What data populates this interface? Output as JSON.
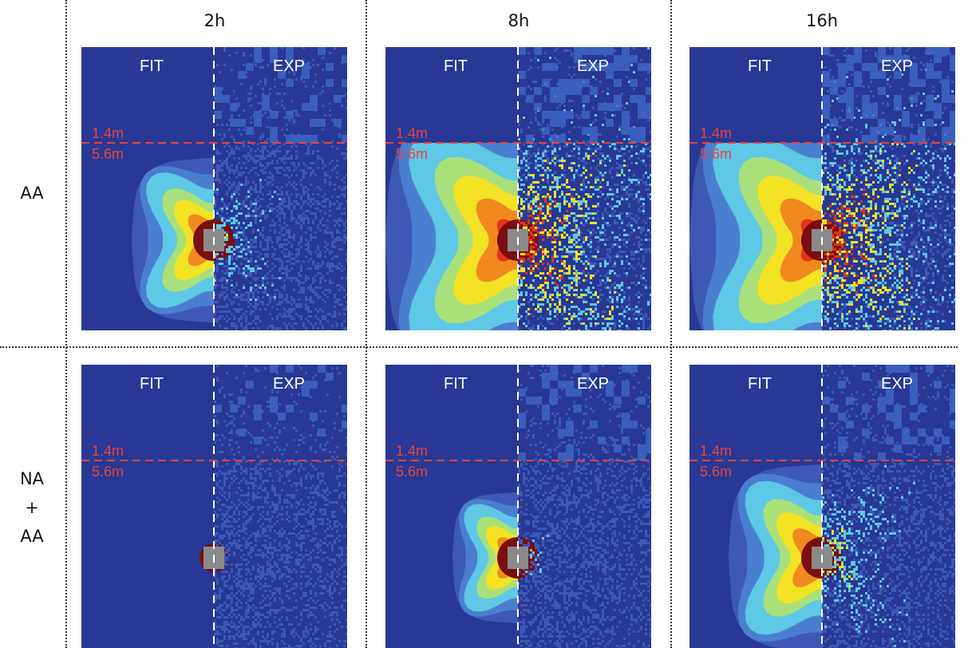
{
  "columns": [
    "2h",
    "8h",
    "16h"
  ],
  "rows": [
    {
      "label_lines": [
        "AA"
      ]
    },
    {
      "label_lines": [
        "NA",
        "+",
        "AA"
      ]
    }
  ],
  "panel_labels": {
    "left": "FIT",
    "right": "EXP",
    "upper_distance": "1.4m",
    "lower_distance": "5.6m"
  },
  "panel_intensity": [
    [
      0.45,
      0.9,
      0.9
    ],
    [
      0.05,
      0.3,
      0.55
    ]
  ],
  "colors": {
    "background": "#283894",
    "low": "#3d59b5",
    "mid": "#5ec8e6",
    "high": "#f3e324",
    "peak": "#e4321b",
    "core": "#7a0d0d",
    "beamstop": "#8a8a8a",
    "divider_line": "#e8453a",
    "text_white": "#ffffff",
    "text_red": "#e8453a"
  }
}
